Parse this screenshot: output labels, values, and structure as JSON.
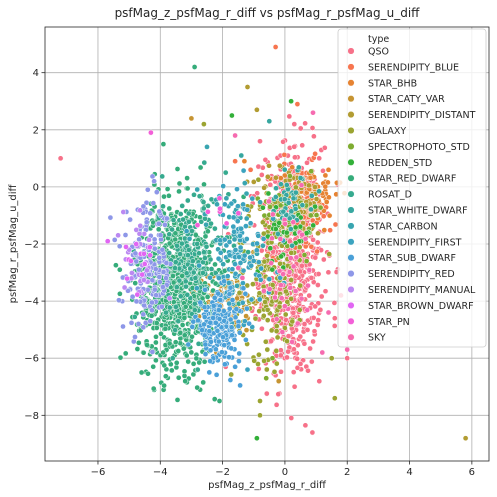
{
  "chart_data": {
    "type": "scatter",
    "title": "psfMag_z_psfMag_r_diff vs psfMag_r_psfMag_u_diff",
    "xlabel": "psfMag_z_psfMag_r_diff",
    "ylabel": "psfMag_r_psfMag_u_diff",
    "xlim": [
      -7.7,
      6.55
    ],
    "ylim": [
      -9.6,
      5.6
    ],
    "xticks": [
      -6,
      -4,
      -2,
      0,
      2,
      4,
      6
    ],
    "yticks": [
      -8,
      -6,
      -4,
      -2,
      0,
      2,
      4
    ],
    "grid": true,
    "legend_title": "type",
    "legend_position": "top-right",
    "series": [
      {
        "name": "QSO",
        "color": "#f77189",
        "cluster": {
          "cx": 0.2,
          "cy": -2.6,
          "sx": 0.5,
          "sy": 2.0,
          "n": 700
        },
        "outliers": [
          [
            -7.2,
            1.0
          ],
          [
            -1.9,
            -6.3
          ],
          [
            -0.3,
            -6.6
          ],
          [
            0.5,
            -6.2
          ],
          [
            1.6,
            -4.6
          ],
          [
            2.0,
            -6.0
          ],
          [
            1.8,
            -3.8
          ],
          [
            0.3,
            2.2
          ],
          [
            -0.8,
            1.6
          ],
          [
            1.1,
            1.0
          ]
        ]
      },
      {
        "name": "SERENDIPITY_BLUE",
        "color": "#f7754f",
        "cluster": {
          "cx": 0.5,
          "cy": -0.8,
          "sx": 0.5,
          "sy": 0.8,
          "n": 90
        },
        "outliers": [
          [
            -0.3,
            4.9
          ],
          [
            0.4,
            2.9
          ],
          [
            -1.6,
            0.9
          ],
          [
            -1.1,
            0.6
          ]
        ]
      },
      {
        "name": "STAR_BHB",
        "color": "#e68332",
        "cluster": {
          "cx": 0.8,
          "cy": -0.2,
          "sx": 0.5,
          "sy": 0.5,
          "n": 70
        },
        "outliers": [
          [
            -1.3,
            0.9
          ],
          [
            1.4,
            0.6
          ]
        ]
      },
      {
        "name": "STAR_CATY_VAR",
        "color": "#c69432",
        "cluster": {
          "cx": -2.0,
          "cy": -4.0,
          "sx": 0.6,
          "sy": 0.5,
          "n": 120
        },
        "outliers": [
          [
            -3.0,
            2.4
          ],
          [
            -2.2,
            -5.8
          ],
          [
            -0.2,
            -6.8
          ]
        ]
      },
      {
        "name": "SERENDIPITY_DISTANT",
        "color": "#b29c32",
        "cluster": {
          "cx": 0.2,
          "cy": -0.5,
          "sx": 0.6,
          "sy": 0.6,
          "n": 80
        },
        "outliers": [
          [
            5.8,
            -8.8
          ],
          [
            -1.2,
            3.5
          ],
          [
            -0.9,
            2.7
          ]
        ]
      },
      {
        "name": "GALAXY",
        "color": "#9ba431",
        "cluster": {
          "cx": -0.5,
          "cy": -3.0,
          "sx": 0.6,
          "sy": 1.5,
          "n": 200
        },
        "outliers": [
          [
            -0.8,
            -7.5
          ],
          [
            1.6,
            -7.4
          ],
          [
            -0.8,
            -8.0
          ],
          [
            1.5,
            -6.0
          ],
          [
            -2.6,
            2.2
          ]
        ]
      },
      {
        "name": "SPECTROPHOTO_STD",
        "color": "#7fac31",
        "cluster": {
          "cx": 0.3,
          "cy": -1.0,
          "sx": 0.5,
          "sy": 0.6,
          "n": 40
        },
        "outliers": [
          [
            -0.4,
            -6.0
          ],
          [
            -0.6,
            -6.7
          ]
        ]
      },
      {
        "name": "REDDEN_STD",
        "color": "#33b039",
        "cluster": {
          "cx": 0.0,
          "cy": -1.5,
          "sx": 0.5,
          "sy": 0.6,
          "n": 40
        },
        "outliers": [
          [
            0.2,
            3.0
          ],
          [
            -1.7,
            2.5
          ],
          [
            -0.9,
            -8.8
          ]
        ]
      },
      {
        "name": "STAR_RED_DWARF",
        "color": "#35ac7a",
        "cluster": {
          "cx": -3.5,
          "cy": -3.4,
          "sx": 0.6,
          "sy": 1.4,
          "n": 1000
        },
        "outliers": [
          [
            -2.9,
            4.2
          ],
          [
            -3.9,
            1.5
          ],
          [
            -5.3,
            -2.9
          ],
          [
            -4.6,
            -6.5
          ],
          [
            -2.1,
            -7.5
          ],
          [
            -3.2,
            -6.8
          ]
        ]
      },
      {
        "name": "ROSAT_D",
        "color": "#36aa8f",
        "cluster": {
          "cx": -3.0,
          "cy": -2.5,
          "sx": 0.6,
          "sy": 1.2,
          "n": 160
        },
        "outliers": [
          [
            -1.9,
            0.5
          ],
          [
            -2.8,
            -6.4
          ],
          [
            -3.6,
            -6.0
          ]
        ]
      },
      {
        "name": "STAR_WHITE_DWARF",
        "color": "#37a7a0",
        "cluster": {
          "cx": 0.2,
          "cy": -0.6,
          "sx": 0.4,
          "sy": 0.6,
          "n": 50
        },
        "outliers": [
          [
            -0.5,
            2.3
          ],
          [
            -1.4,
            1.1
          ]
        ]
      },
      {
        "name": "STAR_CARBON",
        "color": "#38a5b0",
        "cluster": {
          "cx": -1.8,
          "cy": -1.5,
          "sx": 0.5,
          "sy": 0.8,
          "n": 40
        },
        "outliers": [
          [
            -2.5,
            1.4
          ]
        ]
      },
      {
        "name": "SERENDIPITY_FIRST",
        "color": "#3ba3bf",
        "cluster": {
          "cx": -1.5,
          "cy": -2.5,
          "sx": 0.6,
          "sy": 1.2,
          "n": 120
        },
        "outliers": [
          [
            -1.2,
            -6.4
          ],
          [
            -2.2,
            -5.0
          ]
        ]
      },
      {
        "name": "STAR_SUB_DWARF",
        "color": "#4aa0d8",
        "cluster": {
          "cx": -2.1,
          "cy": -4.9,
          "sx": 0.4,
          "sy": 0.6,
          "n": 200
        },
        "outliers": [
          [
            -2.4,
            -6.1
          ],
          [
            -1.6,
            -6.3
          ]
        ]
      },
      {
        "name": "SERENDIPITY_RED",
        "color": "#8e97e8",
        "cluster": {
          "cx": -4.4,
          "cy": -2.9,
          "sx": 0.4,
          "sy": 1.1,
          "n": 160
        },
        "outliers": [
          [
            -4.4,
            -0.1
          ],
          [
            -4.9,
            -2.1
          ],
          [
            -4.2,
            0.2
          ],
          [
            -4.7,
            -4.8
          ]
        ]
      },
      {
        "name": "SERENDIPITY_MANUAL",
        "color": "#bb89f2",
        "cluster": {
          "cx": -4.6,
          "cy": -2.5,
          "sx": 0.3,
          "sy": 0.7,
          "n": 30
        },
        "outliers": [
          [
            -5.0,
            -2.2
          ],
          [
            -3.7,
            -3.9
          ]
        ]
      },
      {
        "name": "STAR_BROWN_DWARF",
        "color": "#e166f3",
        "cluster": {
          "cx": -4.8,
          "cy": -2.4,
          "sx": 0.3,
          "sy": 0.4,
          "n": 12
        },
        "outliers": [
          [
            -5.1,
            -2.1
          ],
          [
            -4.5,
            -2.7
          ]
        ]
      },
      {
        "name": "STAR_PN",
        "color": "#f35fd8",
        "cluster": {
          "cx": -2.0,
          "cy": -1.0,
          "sx": 0.3,
          "sy": 0.3,
          "n": 6
        },
        "outliers": [
          [
            -4.3,
            1.9
          ],
          [
            -2.1,
            -0.4
          ]
        ]
      },
      {
        "name": "SKY",
        "color": "#f66bb0",
        "cluster": {
          "cx": 0.0,
          "cy": -3.0,
          "sx": 0.6,
          "sy": 1.2,
          "n": 40
        },
        "outliers": [
          [
            1.4,
            -4.4
          ],
          [
            2.0,
            -5.7
          ],
          [
            1.2,
            -5.8
          ],
          [
            -1.6,
            1.8
          ],
          [
            0.9,
            2.6
          ]
        ]
      }
    ]
  }
}
